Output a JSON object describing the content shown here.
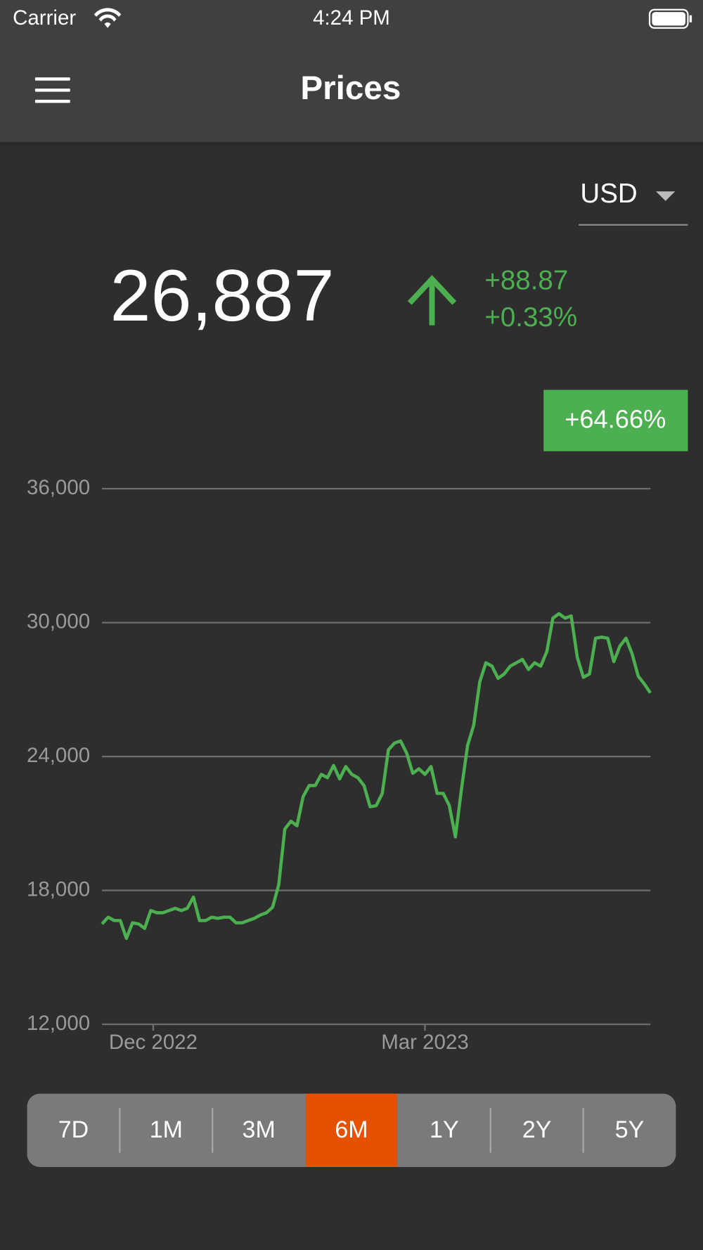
{
  "status_bar": {
    "carrier": "Carrier",
    "time": "4:24 PM"
  },
  "header": {
    "title": "Prices"
  },
  "currency": "USD",
  "price": {
    "value": "26,887",
    "change": "+88.87",
    "change_percent": "+0.33%"
  },
  "period_change": "+64.66%",
  "chart_data": {
    "type": "line",
    "series": [
      {
        "color": "#4caf50",
        "values": [
          16500,
          16800,
          16650,
          16650,
          15850,
          16550,
          16500,
          16300,
          17100,
          17000,
          17000,
          17100,
          17200,
          17100,
          17200,
          17700,
          16650,
          16650,
          16800,
          16750,
          16800,
          16800,
          16550,
          16550,
          16650,
          16750,
          16900,
          17000,
          17250,
          18250,
          20750,
          21100,
          20900,
          22200,
          22700,
          22700,
          23200,
          23050,
          23600,
          23000,
          23550,
          23200,
          23050,
          22700,
          21750,
          21800,
          22350,
          24300,
          24600,
          24700,
          24150,
          23250,
          23450,
          23200,
          23550,
          22350,
          22350,
          21800,
          20400,
          22550,
          24500,
          25400,
          27350,
          28200,
          28050,
          27500,
          27700,
          28050,
          28200,
          28350,
          27900,
          28200,
          28050,
          28700,
          30200,
          30400,
          30200,
          30300,
          28450,
          27550,
          27700,
          29300,
          29350,
          29300,
          28250,
          28950,
          29300,
          28600,
          27600,
          27250,
          26850
        ]
      }
    ],
    "ylim": [
      12000,
      36000
    ],
    "yticks": [
      {
        "value": 12000,
        "label": "12,000"
      },
      {
        "value": 18000,
        "label": "18,000"
      },
      {
        "value": 24000,
        "label": "24,000"
      },
      {
        "value": 30000,
        "label": "30,000"
      },
      {
        "value": 36000,
        "label": "36,000"
      }
    ],
    "xticks": [
      {
        "value": 8.4,
        "label": "Dec 2022"
      },
      {
        "value": 53,
        "label": "Mar 2023"
      }
    ],
    "grid": true
  },
  "range_tabs": [
    {
      "label": "7D",
      "selected": false
    },
    {
      "label": "1M",
      "selected": false
    },
    {
      "label": "3M",
      "selected": false
    },
    {
      "label": "6M",
      "selected": true
    },
    {
      "label": "1Y",
      "selected": false
    },
    {
      "label": "2Y",
      "selected": false
    },
    {
      "label": "5Y",
      "selected": false
    }
  ]
}
